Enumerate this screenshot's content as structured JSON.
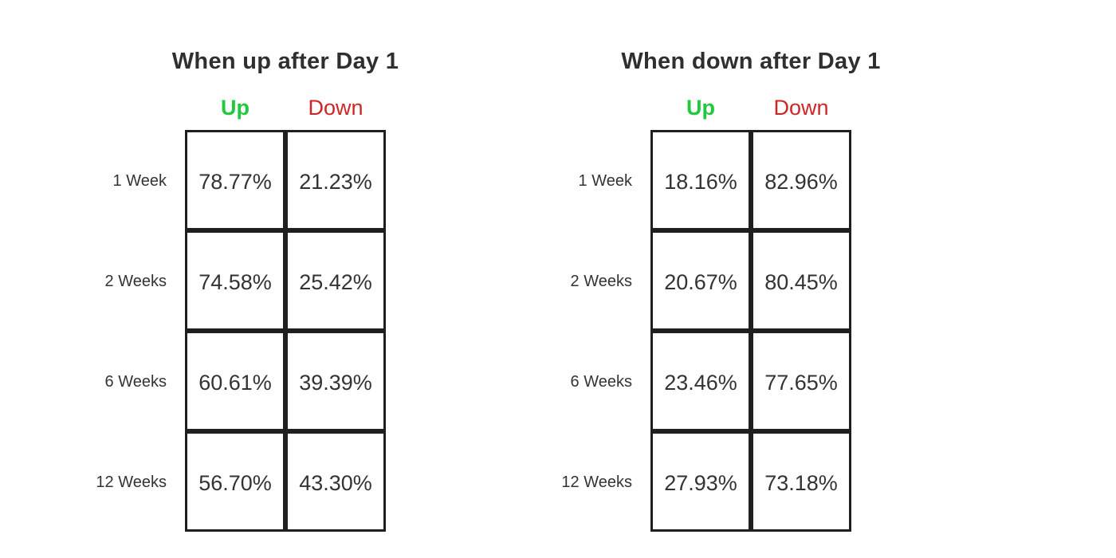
{
  "colors": {
    "up_green": "#22c93e",
    "down_red": "#cc2725",
    "border_dark": "#1f1f1f",
    "text_dark": "#333333",
    "background": "#ffffff"
  },
  "panels": [
    {
      "title": "When up after Day 1",
      "headers": [
        {
          "label": "Up"
        },
        {
          "label": "Down"
        }
      ],
      "rows": [
        {
          "label": "1 Week",
          "values": [
            "78.77%",
            "21.23%"
          ]
        },
        {
          "label": "2 Weeks",
          "values": [
            "74.58%",
            "25.42%"
          ]
        },
        {
          "label": "6 Weeks",
          "values": [
            "60.61%",
            "39.39%"
          ]
        },
        {
          "label": "12 Weeks",
          "values": [
            "56.70%",
            "43.30%"
          ]
        }
      ]
    },
    {
      "title": "When down after Day 1",
      "headers": [
        {
          "label": "Up"
        },
        {
          "label": "Down"
        }
      ],
      "rows": [
        {
          "label": "1 Week",
          "values": [
            "18.16%",
            "82.96%"
          ]
        },
        {
          "label": "2 Weeks",
          "values": [
            "20.67%",
            "80.45%"
          ]
        },
        {
          "label": "6 Weeks",
          "values": [
            "23.46%",
            "77.65%"
          ]
        },
        {
          "label": "12 Weeks",
          "values": [
            "27.93%",
            "73.18%"
          ]
        }
      ]
    }
  ],
  "chart_data": [
    {
      "type": "table",
      "title": "When up after Day 1",
      "columns": [
        "Up",
        "Down"
      ],
      "row_labels": [
        "1 Week",
        "2 Weeks",
        "6 Weeks",
        "12 Weeks"
      ],
      "values": [
        [
          78.77,
          21.23
        ],
        [
          74.58,
          25.42
        ],
        [
          60.61,
          39.39
        ],
        [
          56.7,
          43.3
        ]
      ],
      "unit": "%"
    },
    {
      "type": "table",
      "title": "When down after Day 1",
      "columns": [
        "Up",
        "Down"
      ],
      "row_labels": [
        "1 Week",
        "2 Weeks",
        "6 Weeks",
        "12 Weeks"
      ],
      "values": [
        [
          18.16,
          82.96
        ],
        [
          20.67,
          80.45
        ],
        [
          23.46,
          77.65
        ],
        [
          27.93,
          73.18
        ]
      ],
      "unit": "%"
    }
  ]
}
